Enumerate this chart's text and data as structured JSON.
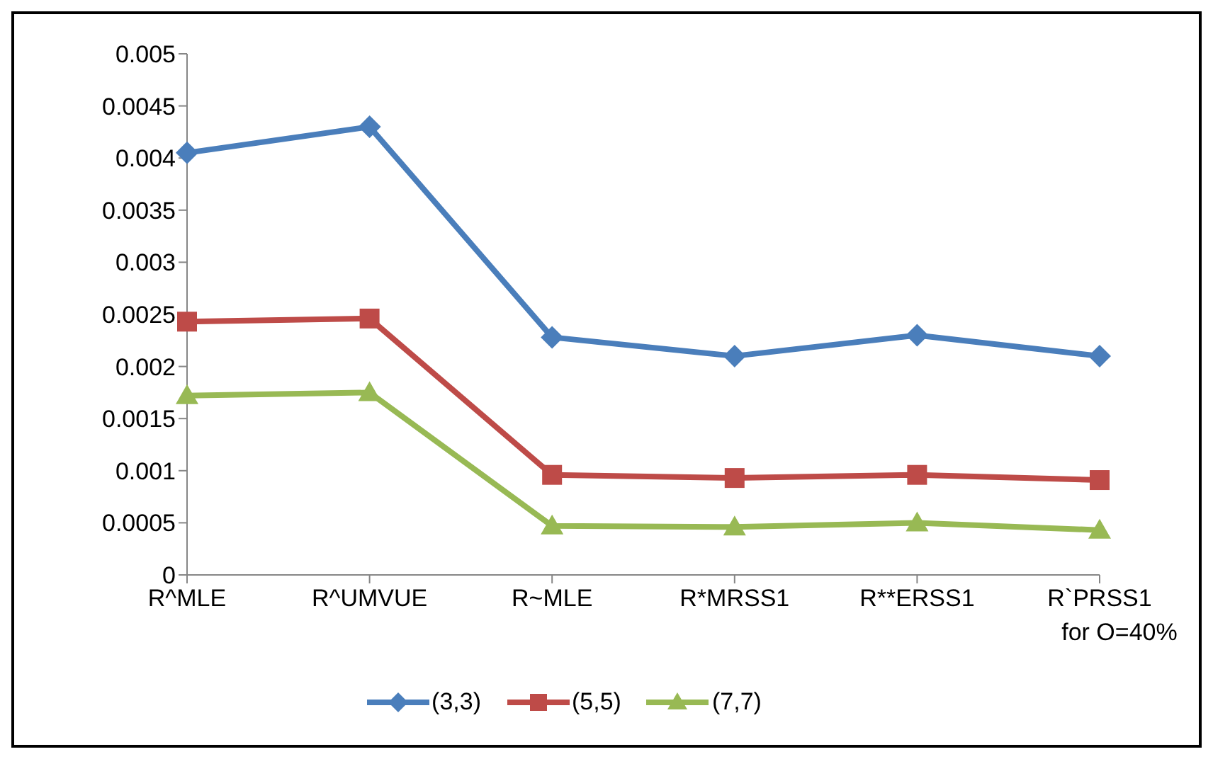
{
  "chart_data": {
    "type": "line",
    "categories": [
      "R^MLE",
      "R^UMVUE",
      "R~MLE",
      "R*MRSS1",
      "R**ERSS1",
      "R`PRSS1 for O=40%"
    ],
    "series": [
      {
        "name": "(3,3)",
        "color": "#4a7ebb",
        "marker": "diamond",
        "values": [
          0.00405,
          0.0043,
          0.00228,
          0.0021,
          0.0023,
          0.0021
        ]
      },
      {
        "name": "(5,5)",
        "color": "#be4b48",
        "marker": "square",
        "values": [
          0.00243,
          0.00246,
          0.00096,
          0.00093,
          0.00096,
          0.00091
        ]
      },
      {
        "name": "(7,7)",
        "color": "#98b954",
        "marker": "triangle",
        "values": [
          0.00172,
          0.00175,
          0.00047,
          0.00046,
          0.0005,
          0.00043
        ]
      }
    ],
    "ylim": [
      0,
      0.005
    ],
    "yticks": [
      0,
      0.0005,
      0.001,
      0.0015,
      0.002,
      0.0025,
      0.003,
      0.0035,
      0.004,
      0.0045,
      0.005
    ],
    "grid": false,
    "legend": "bottom"
  }
}
